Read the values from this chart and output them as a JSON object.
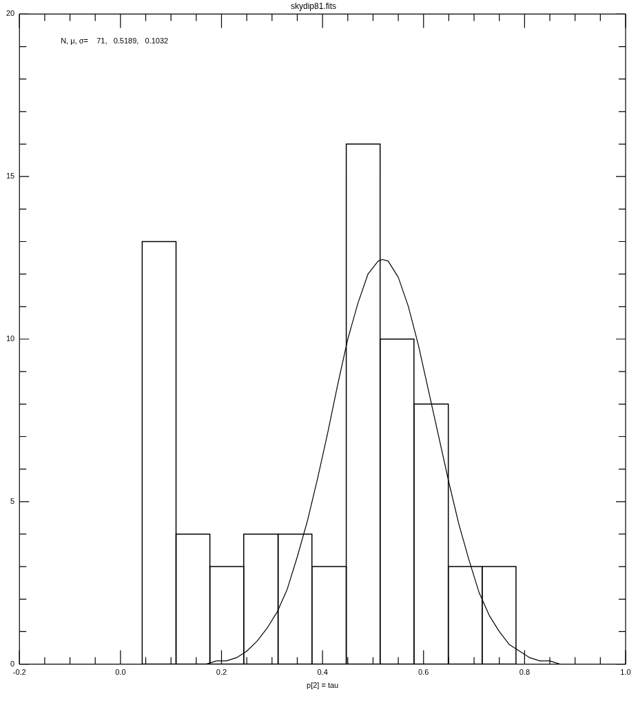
{
  "chart_data": {
    "type": "histogram",
    "title": "skydip81.fits",
    "xlabel": "p[2] = tau",
    "bins": [
      0.043,
      0.11,
      0.177,
      0.244,
      0.312,
      0.379,
      0.447,
      0.514,
      0.581,
      0.649,
      0.716,
      0.783
    ],
    "values": [
      13,
      4,
      3,
      4,
      4,
      3,
      16,
      10,
      8,
      3,
      3
    ],
    "color": "#000000",
    "series": [
      {
        "type": "line",
        "color": "#000000",
        "x": [
          0.15,
          0.17,
          0.19,
          0.21,
          0.23,
          0.25,
          0.27,
          0.29,
          0.31,
          0.33,
          0.35,
          0.37,
          0.39,
          0.41,
          0.43,
          0.45,
          0.47,
          0.49,
          0.51,
          0.519,
          0.53,
          0.55,
          0.57,
          0.59,
          0.61,
          0.63,
          0.65,
          0.67,
          0.69,
          0.71,
          0.73,
          0.75,
          0.77,
          0.79,
          0.81,
          0.83,
          0.85,
          0.87,
          0.89
        ],
        "values": [
          0.0,
          0.0,
          0.1,
          0.1,
          0.2,
          0.4,
          0.7,
          1.1,
          1.6,
          2.3,
          3.3,
          4.4,
          5.7,
          7.1,
          8.6,
          10.0,
          11.1,
          12.0,
          12.4,
          12.45,
          12.4,
          11.9,
          11.0,
          9.8,
          8.4,
          7.0,
          5.6,
          4.3,
          3.2,
          2.2,
          1.5,
          1.0,
          0.6,
          0.4,
          0.2,
          0.1,
          0.1,
          0.0,
          0.0
        ]
      }
    ],
    "xlim": [
      -0.2,
      1.0
    ],
    "xticks": [
      {
        "value": -0.2,
        "label": "-0.2"
      },
      {
        "value": -0.15,
        "label": null
      },
      {
        "value": -0.1,
        "label": null
      },
      {
        "value": -0.05,
        "label": null
      },
      {
        "value": 0,
        "label": "0.0"
      },
      {
        "value": 0.05,
        "label": null
      },
      {
        "value": 0.1,
        "label": null
      },
      {
        "value": 0.15,
        "label": null
      },
      {
        "value": 0.2,
        "label": "0.2"
      },
      {
        "value": 0.25,
        "label": null
      },
      {
        "value": 0.3,
        "label": null
      },
      {
        "value": 0.35,
        "label": null
      },
      {
        "value": 0.4,
        "label": "0.4"
      },
      {
        "value": 0.45,
        "label": null
      },
      {
        "value": 0.5,
        "label": null
      },
      {
        "value": 0.55,
        "label": null
      },
      {
        "value": 0.6,
        "label": "0.6"
      },
      {
        "value": 0.65,
        "label": null
      },
      {
        "value": 0.7,
        "label": null
      },
      {
        "value": 0.75,
        "label": null
      },
      {
        "value": 0.8,
        "label": "0.8"
      },
      {
        "value": 0.85,
        "label": null
      },
      {
        "value": 0.9,
        "label": null
      },
      {
        "value": 0.95,
        "label": null
      },
      {
        "value": 1.0,
        "label": "1.0"
      }
    ],
    "ylim": [
      0,
      20
    ],
    "yticks": [
      0,
      {
        "value": 1,
        "label": null
      },
      {
        "value": 2,
        "label": null
      },
      {
        "value": 3,
        "label": null
      },
      {
        "value": 4,
        "label": null
      },
      5,
      {
        "value": 6,
        "label": null
      },
      {
        "value": 7,
        "label": null
      },
      {
        "value": 8,
        "label": null
      },
      {
        "value": 9,
        "label": null
      },
      10,
      {
        "value": 11,
        "label": null
      },
      {
        "value": 12,
        "label": null
      },
      {
        "value": 13,
        "label": null
      },
      {
        "value": 14,
        "label": null
      },
      15,
      {
        "value": 16,
        "label": null
      },
      {
        "value": 17,
        "label": null
      },
      {
        "value": 18,
        "label": null
      },
      {
        "value": 19,
        "label": null
      },
      20
    ],
    "annotations": [
      "N, μ, σ=    71,   0.5189,   0.1032"
    ],
    "grid": false,
    "legend": false
  }
}
